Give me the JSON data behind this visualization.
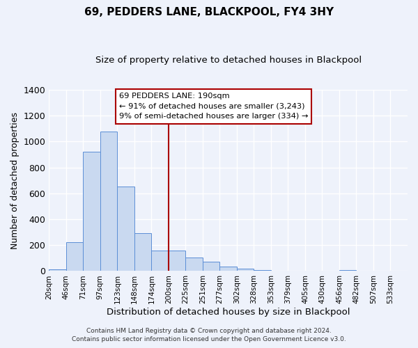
{
  "title": "69, PEDDERS LANE, BLACKPOOL, FY4 3HY",
  "subtitle": "Size of property relative to detached houses in Blackpool",
  "xlabel": "Distribution of detached houses by size in Blackpool",
  "ylabel": "Number of detached properties",
  "footer_line1": "Contains HM Land Registry data © Crown copyright and database right 2024.",
  "footer_line2": "Contains public sector information licensed under the Open Government Licence v3.0.",
  "bin_labels": [
    "20sqm",
    "46sqm",
    "71sqm",
    "97sqm",
    "123sqm",
    "148sqm",
    "174sqm",
    "200sqm",
    "225sqm",
    "251sqm",
    "277sqm",
    "302sqm",
    "328sqm",
    "353sqm",
    "379sqm",
    "405sqm",
    "430sqm",
    "456sqm",
    "482sqm",
    "507sqm",
    "533sqm"
  ],
  "bar_values": [
    15,
    225,
    920,
    1075,
    655,
    290,
    160,
    160,
    105,
    70,
    35,
    20,
    10,
    0,
    0,
    0,
    0,
    10,
    0,
    0,
    0
  ],
  "bar_color": "#c9d9f0",
  "bar_edge_color": "#5b8ed6",
  "vline_x": 7.0,
  "vline_color": "#aa0000",
  "annotation_title": "69 PEDDERS LANE: 190sqm",
  "annotation_line1": "← 91% of detached houses are smaller (3,243)",
  "annotation_line2": "9% of semi-detached houses are larger (334) →",
  "annotation_box_edge": "#aa0000",
  "ylim": [
    0,
    1400
  ],
  "yticks": [
    0,
    200,
    400,
    600,
    800,
    1000,
    1200,
    1400
  ],
  "background_color": "#eef2fb"
}
